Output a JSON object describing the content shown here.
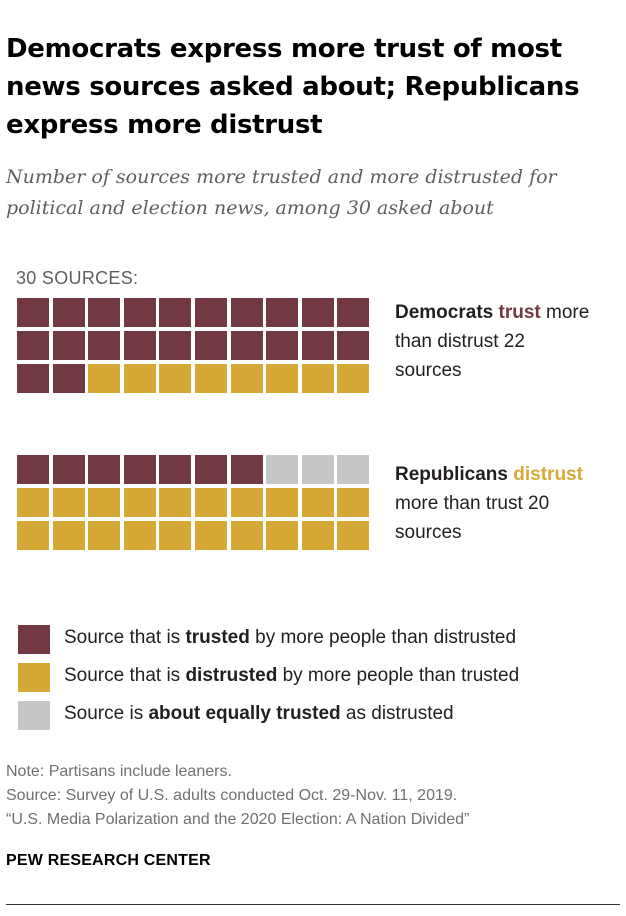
{
  "title": "Democrats express more trust of most news sources asked about; Republicans express more distrust",
  "subtitle": "Number of sources more trusted and more distrusted for political and election news, among 30 asked about",
  "colors": {
    "trusted": "#733943",
    "distrusted": "#d6a936",
    "equal": "#c4c6c8"
  },
  "chart_data": {
    "type": "waffle",
    "total_label": "30 SOURCES:",
    "total": 30,
    "groups": [
      {
        "name": "Democrats",
        "label_bold": "Democrats",
        "label_keyword": "trust",
        "label_rest": "more than distrust 22 sources",
        "counts": {
          "trusted": 22,
          "distrusted": 8,
          "equal": 0
        },
        "order": [
          "trusted",
          "distrusted",
          "equal"
        ]
      },
      {
        "name": "Republicans",
        "label_bold": "Republicans",
        "label_keyword": "distrust",
        "label_rest": "more than trust 20 sources",
        "counts": {
          "trusted": 7,
          "distrusted": 20,
          "equal": 3
        },
        "order": [
          "trusted",
          "equal",
          "distrusted"
        ]
      }
    ]
  },
  "legend": [
    {
      "key": "trusted",
      "pre": "Source that is ",
      "bold": "trusted",
      "post": " by more people than distrusted"
    },
    {
      "key": "distrusted",
      "pre": "Source that is ",
      "bold": "distrusted",
      "post": " by more people than trusted"
    },
    {
      "key": "equal",
      "pre": "Source is ",
      "bold": "about equally trusted",
      "post": " as distrusted"
    }
  ],
  "notes": {
    "note": "Note: Partisans include leaners.",
    "source": "Source: Survey of U.S. adults conducted Oct. 29-Nov. 11, 2019.",
    "report": "“U.S. Media Polarization and the 2020 Election: A Nation Divided”"
  },
  "brand": "PEW RESEARCH CENTER"
}
